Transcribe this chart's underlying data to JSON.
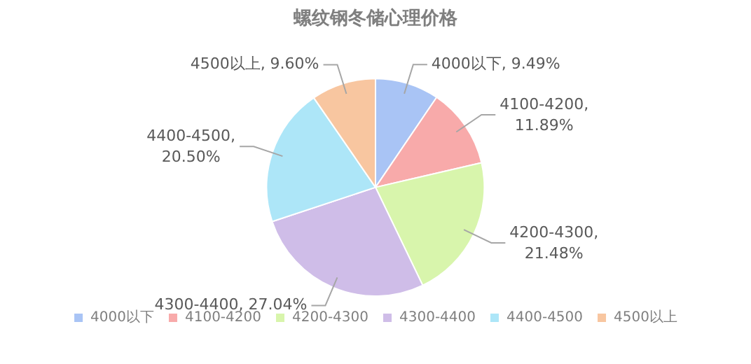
{
  "chart_data": {
    "type": "pie",
    "title": "螺纹钢冬储心理价格",
    "categories": [
      "4000以下",
      "4100-4200",
      "4200-4300",
      "4300-4400",
      "4400-4500",
      "4500以上"
    ],
    "values": [
      9.49,
      11.89,
      21.48,
      27.04,
      20.5,
      9.6
    ],
    "value_labels": [
      "4000以下, 9.49%",
      "4100-4200, 11.89%",
      "4200-4300, 21.48%",
      "4300-4400, 27.04%",
      "4400-4500, 20.50%",
      "4500以上, 9.60%"
    ],
    "colors": [
      "#a9c4f5",
      "#f8aaaa",
      "#d8f5ac",
      "#cfbde8",
      "#ade6f8",
      "#f8c6a0"
    ],
    "legend": "bottom"
  }
}
